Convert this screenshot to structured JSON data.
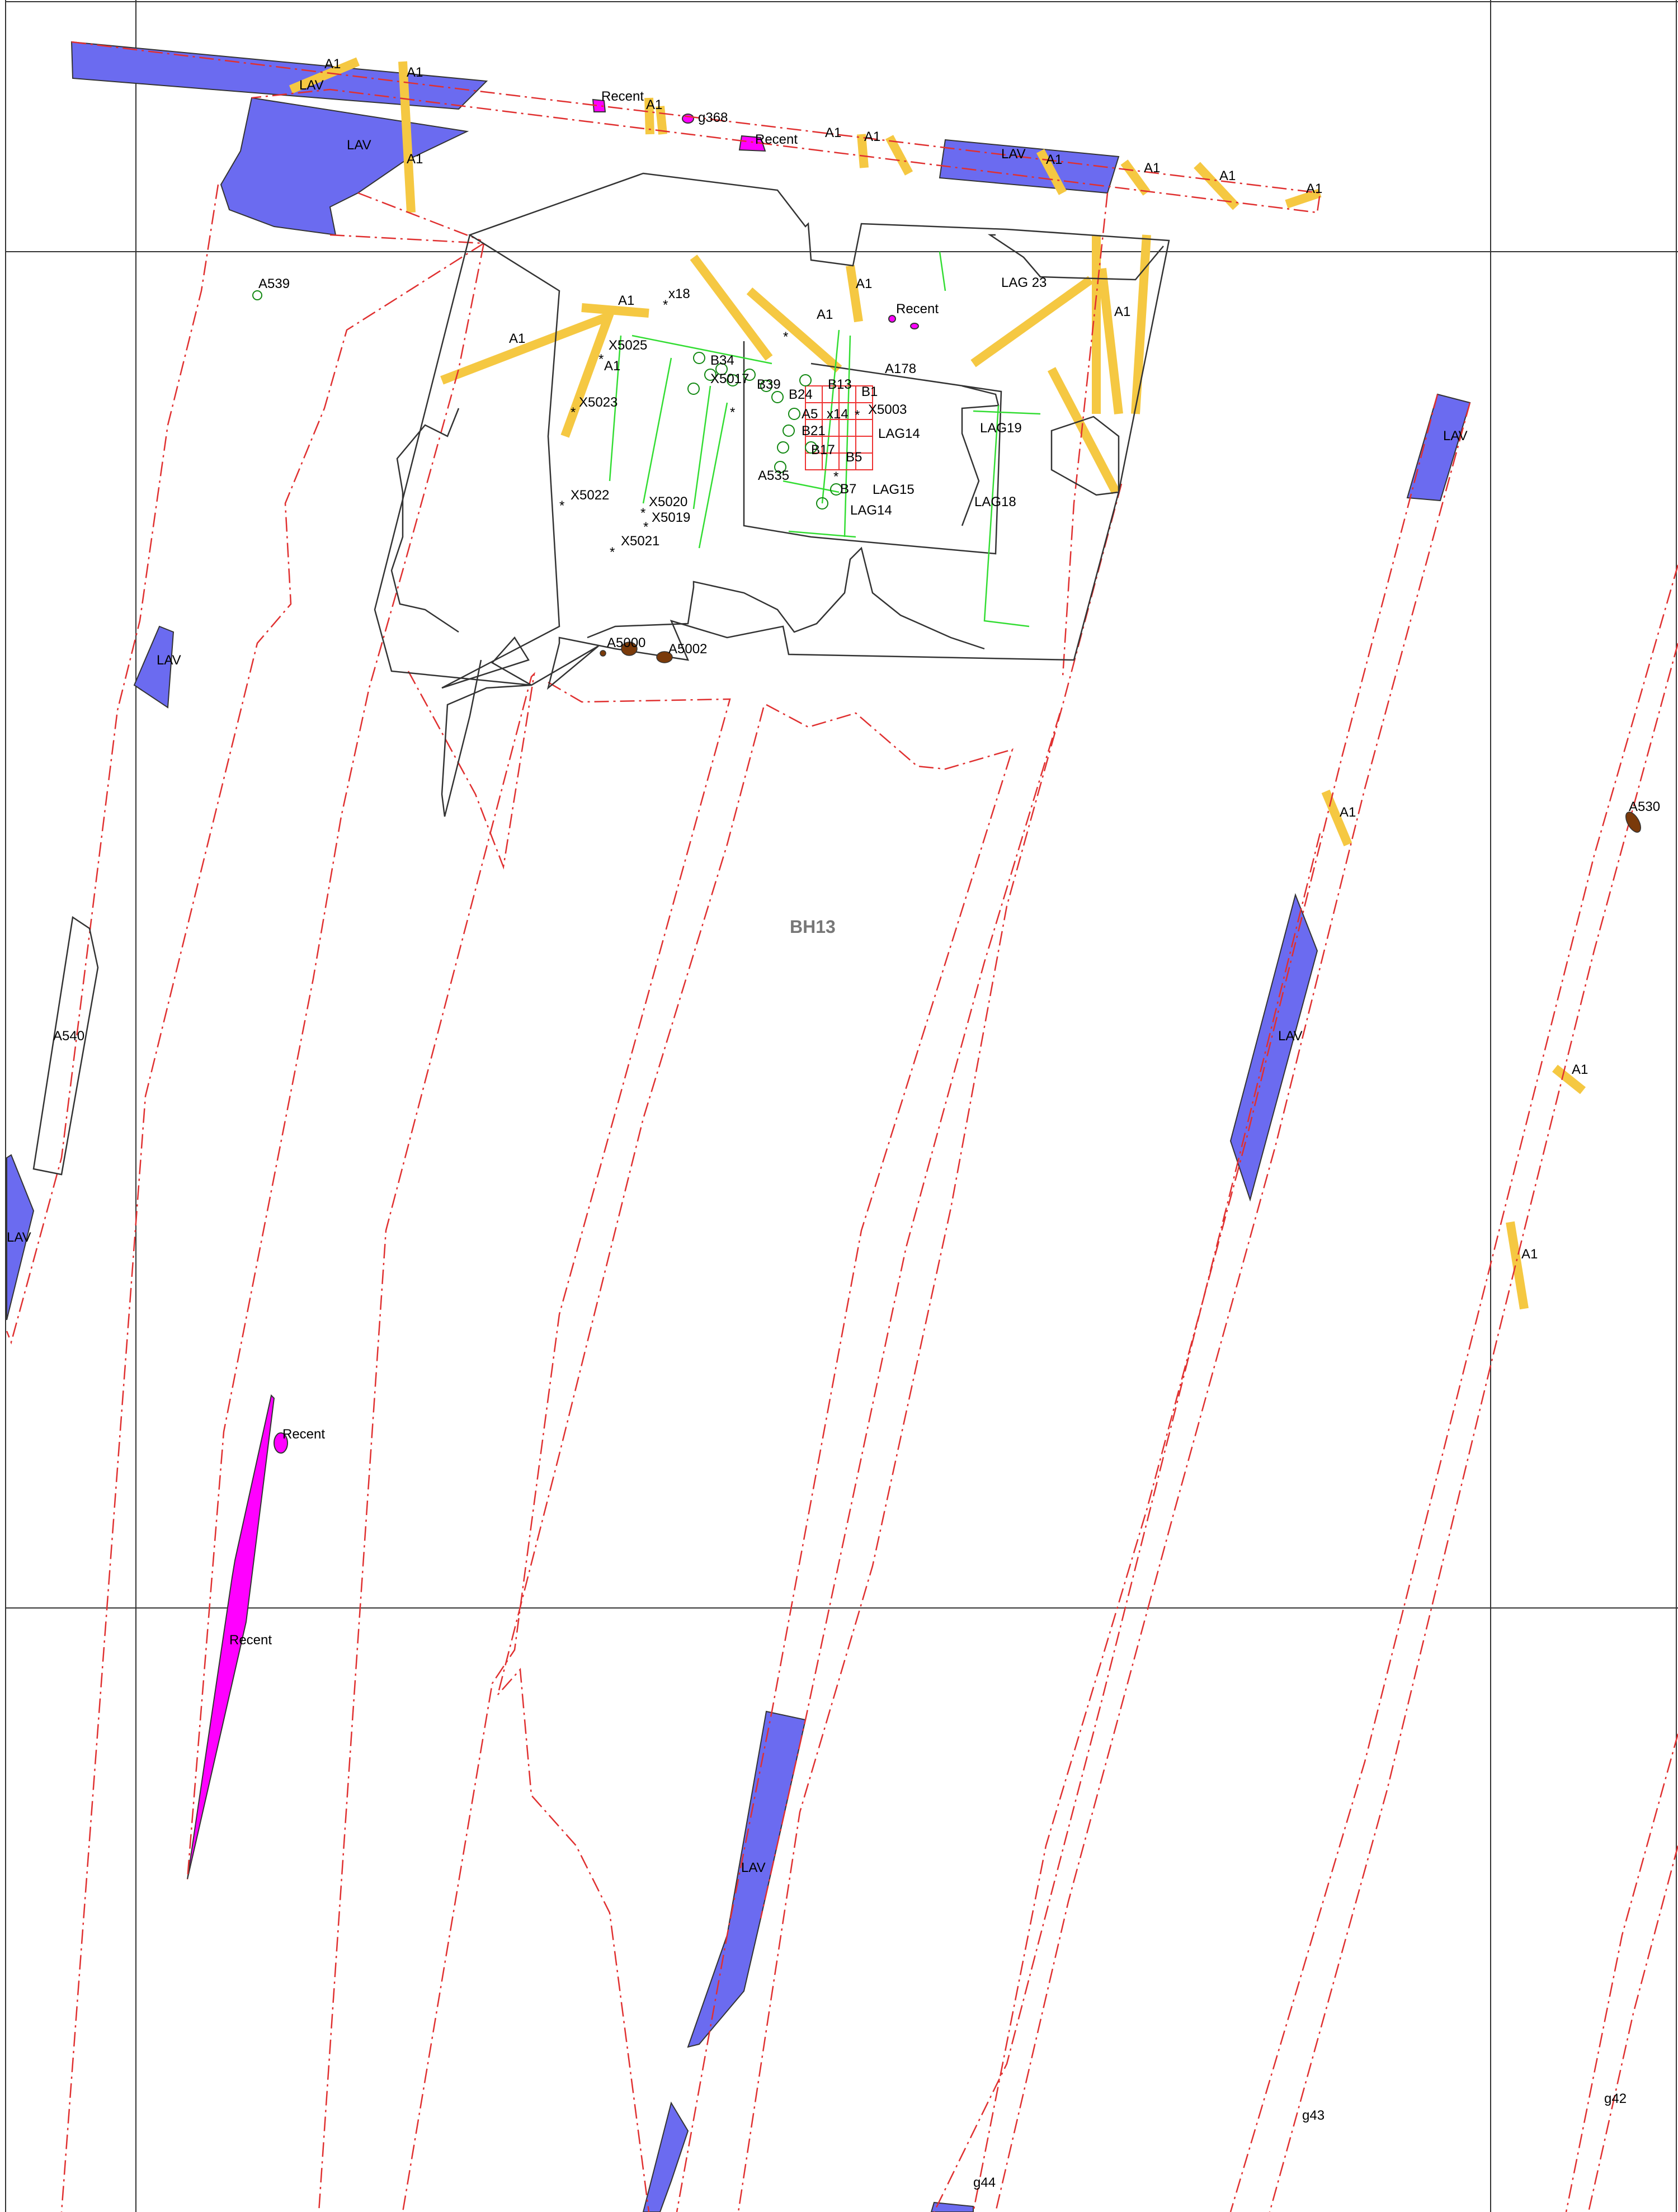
{
  "map": {
    "center_label": "BH13",
    "labels": {
      "a1": "A1",
      "lav": "LAV",
      "recent": "Recent",
      "g368": "g368",
      "a539": "A539",
      "x18": "x18",
      "x5025": "X5025",
      "x5023": "X5023",
      "x5022": "X5022",
      "x5020": "X5020",
      "x5019": "X5019",
      "x5021": "X5021",
      "x5017": "X5017",
      "x5003": "X5003",
      "x14": "x14",
      "b34": "B34",
      "b39": "B39",
      "b13": "B13",
      "b1": "B1",
      "b24": "B24",
      "b21": "B21",
      "b17": "B17",
      "b5": "B5",
      "b7": "B7",
      "a5": "A5",
      "a178": "A178",
      "a535": "A535",
      "lag23": "LAG 23",
      "lag14": "LAG14",
      "lag19": "LAG19",
      "lag18": "LAG18",
      "lag15": "LAG15",
      "a5000": "A5000",
      "a5002": "A5002",
      "a530": "A530",
      "a540": "A540",
      "g44": "g44",
      "g43": "g43",
      "g42": "g42"
    },
    "legend_colors": {
      "lav": "#6b6bf0",
      "a1": "#f5c842",
      "recent": "#ff00ff",
      "feature": "#7a3a0a",
      "trench_outline": "#e03030",
      "grid": "#333333",
      "survey": "#33dd33"
    }
  }
}
